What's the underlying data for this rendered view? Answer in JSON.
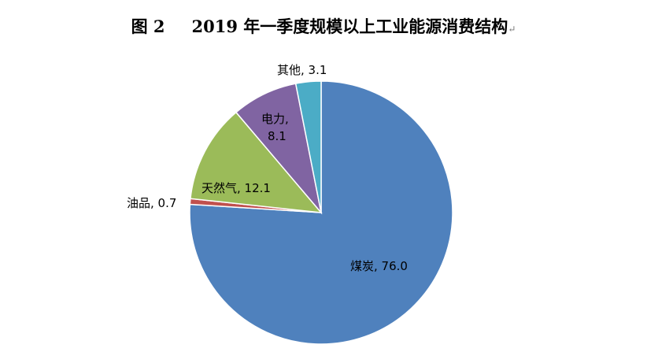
{
  "title": {
    "figure_no": "图 2",
    "text": "2019 年一季度规模以上工业能源消费结构",
    "return_mark": "↵"
  },
  "chart_data": {
    "type": "pie",
    "title": "2019 年一季度规模以上工业能源消费结构",
    "start": "12 o'clock, clockwise",
    "slices": [
      {
        "name": "煤炭",
        "value": 76.0,
        "color": "#4F81BD",
        "label": "煤炭, 76.0"
      },
      {
        "name": "油品",
        "value": 0.7,
        "color": "#C0504D",
        "label": "油品, 0.7"
      },
      {
        "name": "天然气",
        "value": 12.1,
        "color": "#9BBB59",
        "label": "天然气, 12.1"
      },
      {
        "name": "电力",
        "value": 8.1,
        "color": "#8064A2",
        "label_lines": [
          "电力,",
          "8.1"
        ]
      },
      {
        "name": "其他",
        "value": 3.1,
        "color": "#4BACC6",
        "label": "其他, 3.1"
      }
    ]
  }
}
